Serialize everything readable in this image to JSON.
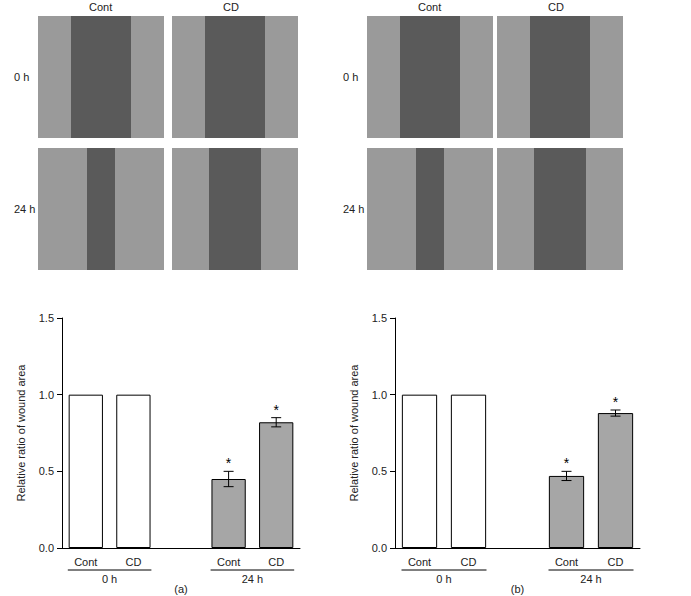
{
  "image_panels": [
    {
      "columns": [
        "Cont",
        "CD"
      ],
      "rows": [
        "0 h",
        "24 h"
      ]
    },
    {
      "columns": [
        "Cont",
        "CD"
      ],
      "rows": [
        "0 h",
        "24 h"
      ]
    }
  ],
  "chart_data": [
    {
      "type": "bar",
      "title": "(a)",
      "y_label": "Relative ratio of wound area",
      "categories": [
        "Cont",
        "CD",
        null,
        "Cont",
        "CD"
      ],
      "groups": [
        "0 h",
        "0 h",
        null,
        "24 h",
        "24 h"
      ],
      "values": [
        1.0,
        1.0,
        null,
        0.45,
        0.82
      ],
      "errors": [
        null,
        null,
        null,
        0.05,
        0.03
      ],
      "annotations": [
        null,
        null,
        null,
        "*",
        "*"
      ],
      "colors": [
        "#ffffff",
        "#ffffff",
        null,
        "#a6a6a6",
        "#a6a6a6"
      ],
      "ylim": [
        0,
        1.5
      ],
      "yticks": [
        {
          "value": 0,
          "label": "0.0"
        },
        {
          "value": 0.5,
          "label": "0.5"
        },
        {
          "value": 1,
          "label": "1.0"
        },
        {
          "value": 1.5,
          "label": "1.5"
        }
      ],
      "grid": false
    },
    {
      "type": "bar",
      "title": "(b)",
      "y_label": "Relative ratio of wound area",
      "categories": [
        "Cont",
        "CD",
        null,
        "Cont",
        "CD"
      ],
      "groups": [
        "0 h",
        "0 h",
        null,
        "24 h",
        "24 h"
      ],
      "values": [
        1.0,
        1.0,
        null,
        0.47,
        0.88
      ],
      "errors": [
        null,
        null,
        null,
        0.03,
        0.02
      ],
      "annotations": [
        null,
        null,
        null,
        "*",
        "*"
      ],
      "colors": [
        "#ffffff",
        "#ffffff",
        null,
        "#a6a6a6",
        "#a6a6a6"
      ],
      "ylim": [
        0,
        1.5
      ],
      "yticks": [
        {
          "value": 0,
          "label": "0.0"
        },
        {
          "value": 0.5,
          "label": "0.5"
        },
        {
          "value": 1,
          "label": "1.0"
        },
        {
          "value": 1.5,
          "label": "1.5"
        }
      ],
      "grid": false
    }
  ]
}
